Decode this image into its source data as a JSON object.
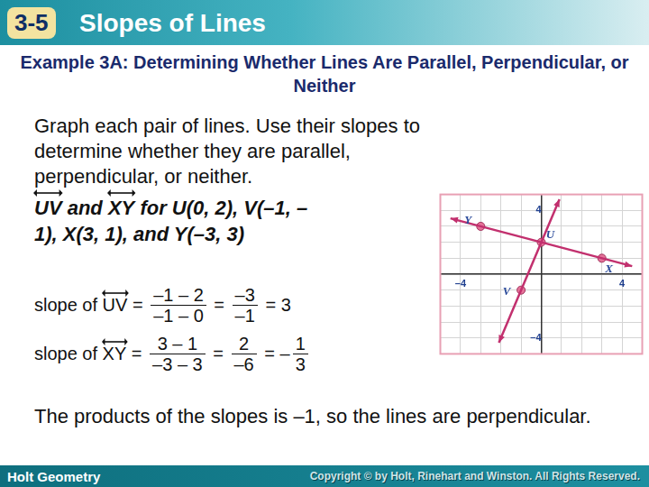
{
  "header": {
    "number": "3-5",
    "title": "Slopes of Lines"
  },
  "example_title": "Example 3A: Determining Whether Lines Are Parallel, Perpendicular, or Neither",
  "prompt": "Graph each pair of lines. Use their slopes to determine whether they are parallel, perpendicular, or neither.",
  "given": [
    {
      "text": "UV",
      "ray": true
    },
    {
      "text": " and "
    },
    {
      "text": "XY",
      "ray": true
    },
    {
      "text": " for U(0, 2), V(–1, –1), X(3, 1), and Y(–3, 3)"
    }
  ],
  "slopes": [
    {
      "prefix": "slope of",
      "line": "UV",
      "relation": "=",
      "steps": [
        {
          "num": "–1 – 2",
          "den": "–1 – 0"
        },
        {
          "num": "–3",
          "den": "–1"
        },
        {
          "value": "3"
        }
      ]
    },
    {
      "prefix": "slope of",
      "line": "XY",
      "relation": "=",
      "steps": [
        {
          "num": "3 – 1",
          "den": "–3 – 3"
        },
        {
          "num": "2",
          "den": "–6"
        },
        {
          "sign": "–",
          "num": "1",
          "den": "3"
        }
      ]
    }
  ],
  "conclusion": "The products of the slopes is –1, so the lines are perpendicular.",
  "footer": {
    "left": "Holt Geometry",
    "right": "Copyright © by Holt, Rinehart and Winston. All Rights Reserved."
  },
  "chart_data": {
    "type": "scatter",
    "xlim": [
      -5,
      5
    ],
    "ylim": [
      -5,
      5
    ],
    "xticks": [
      {
        "value": -4,
        "label": "–4"
      },
      4
    ],
    "yticks": [
      {
        "value": -4,
        "label": "–4"
      },
      4
    ],
    "grid": true,
    "series": [
      {
        "color": "#c2306e",
        "line_style": "solid",
        "x": [
          -2.1,
          0.9
        ],
        "values": [
          -4.3,
          4.7
        ]
      },
      {
        "color": "#c2306e",
        "line_style": "solid",
        "x": [
          -4.5,
          4.5
        ],
        "values": [
          3.5,
          0.5
        ]
      }
    ],
    "points": {
      "labels": [
        "U",
        "V",
        "X",
        "Y"
      ],
      "x": [
        0,
        -1,
        3,
        -3
      ],
      "values": [
        2,
        -1,
        1,
        3
      ],
      "color": "#e57399",
      "marker": "circle"
    }
  }
}
